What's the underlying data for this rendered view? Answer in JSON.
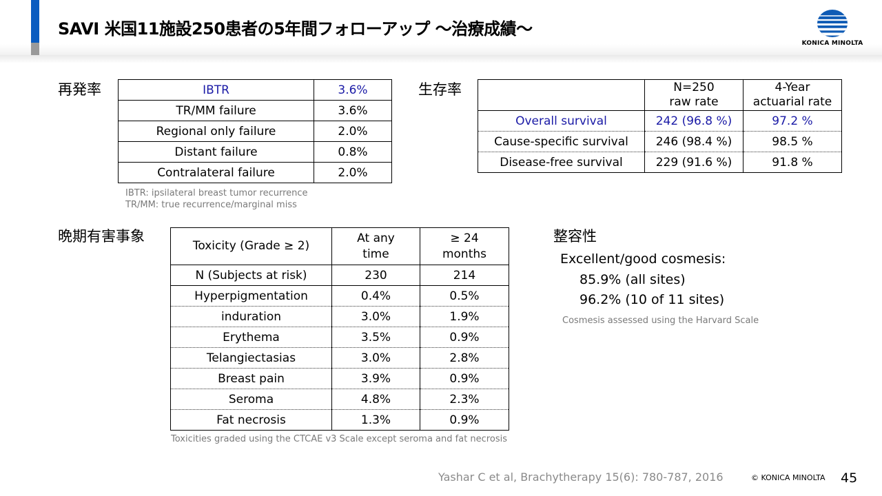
{
  "title": "SAVI 米国11施設250患者の5年間フォローアップ ～治療成績～",
  "logo": {
    "text": "KONICA MINOLTA"
  },
  "recurrence": {
    "label": "再発率",
    "rows": [
      {
        "name": "IBTR",
        "value": "3.6%"
      },
      {
        "name": "TR/MM failure",
        "value": "3.6%"
      },
      {
        "name": "Regional only failure",
        "value": "2.0%"
      },
      {
        "name": "Distant failure",
        "value": "0.8%"
      },
      {
        "name": "Contralateral failure",
        "value": "2.0%"
      }
    ],
    "notes": [
      "IBTR: ipsilateral breast tumor recurrence",
      "TR/MM: true recurrence/marginal miss"
    ]
  },
  "survival": {
    "label": "生存率",
    "header": {
      "col1": "",
      "col2_line1": "N=250",
      "col2_line2": "raw rate",
      "col3_line1": "4-Year",
      "col3_line2": "actuarial rate"
    },
    "rows": [
      {
        "name": "Overall survival",
        "raw": "242 (96.8 %)",
        "actuarial": "97.2 %"
      },
      {
        "name": "Cause-specific survival",
        "raw": "246 (98.4 %)",
        "actuarial": "98.5 %"
      },
      {
        "name": "Disease-free survival",
        "raw": "229 (91.6 %)",
        "actuarial": "91.8 %"
      }
    ]
  },
  "toxicity": {
    "label": "晩期有害事象",
    "header": {
      "col1": "Toxicity (Grade ≥ 2)",
      "col2_line1": "At any",
      "col2_line2": "time",
      "col3_line1": "≥ 24",
      "col3_line2": "months"
    },
    "rows": [
      {
        "name": "N (Subjects at risk)",
        "any": "230",
        "m24": "214"
      },
      {
        "name": "Hyperpigmentation",
        "any": "0.4%",
        "m24": "0.5%"
      },
      {
        "name": "induration",
        "any": "3.0%",
        "m24": "1.9%"
      },
      {
        "name": "Erythema",
        "any": "3.5%",
        "m24": "0.9%"
      },
      {
        "name": "Telangiectasias",
        "any": "3.0%",
        "m24": "2.8%"
      },
      {
        "name": "Breast pain",
        "any": "3.9%",
        "m24": "0.9%"
      },
      {
        "name": "Seroma",
        "any": "4.8%",
        "m24": "2.3%"
      },
      {
        "name": "Fat necrosis",
        "any": "1.3%",
        "m24": "0.9%"
      }
    ],
    "note": "Toxicities graded  using the CTCAE v3 Scale except seroma and fat necrosis"
  },
  "cosmesis": {
    "label": "整容性",
    "line1": "Excellent/good cosmesis:",
    "line2": "85.9% (all sites)",
    "line3": "96.2% (10 of 11 sites)",
    "note": "Cosmesis assessed using the Harvard Scale"
  },
  "footer": {
    "reference": "Yashar C et al, Brachytherapy 15(6): 780-787, 2016",
    "copyright": "© KONICA MINOLTA",
    "page": "45"
  }
}
